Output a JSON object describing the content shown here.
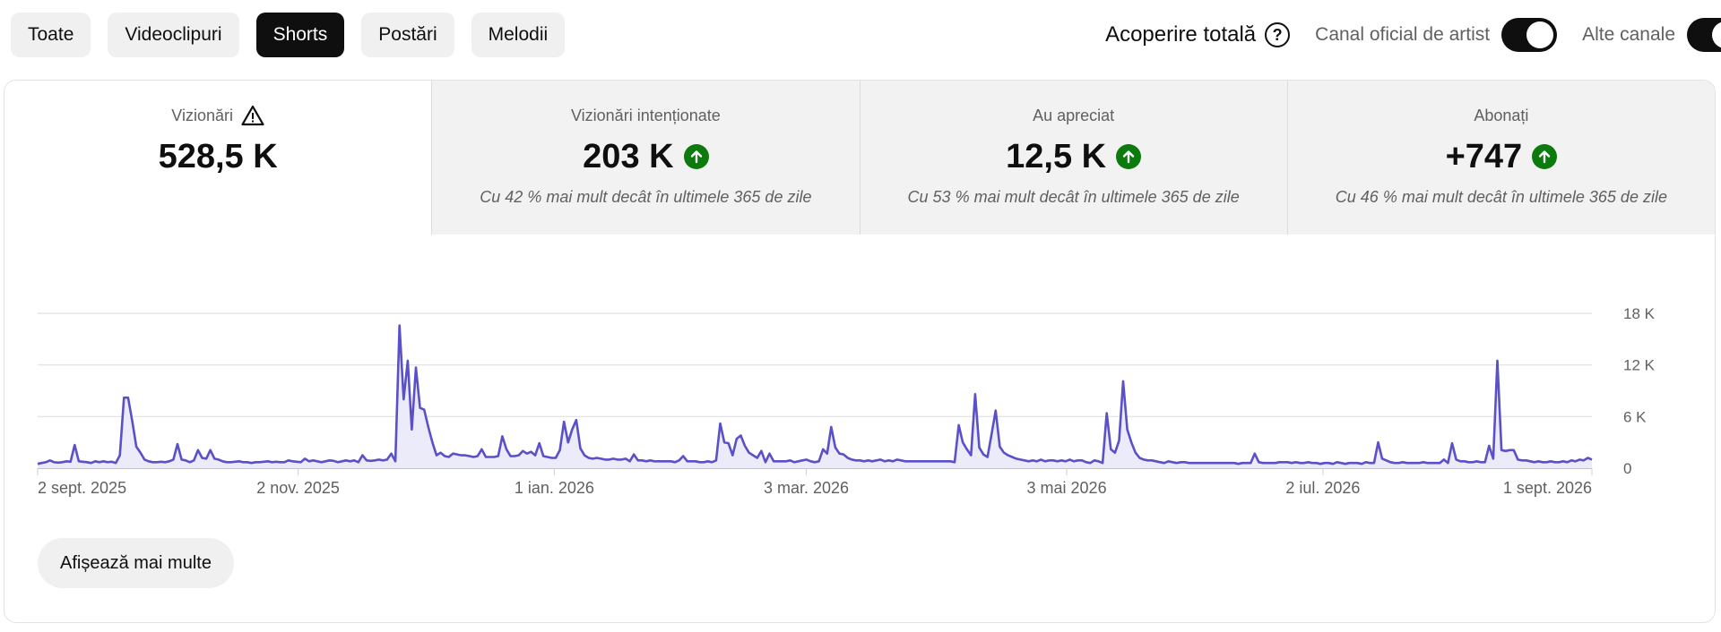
{
  "filters": {
    "chips": [
      {
        "label": "Toate",
        "active": false
      },
      {
        "label": "Videoclipuri",
        "active": false
      },
      {
        "label": "Shorts",
        "active": true
      },
      {
        "label": "Postări",
        "active": false
      },
      {
        "label": "Melodii",
        "active": false
      }
    ],
    "reach_label": "Acoperire totală",
    "official_artist_label": "Canal oficial de artist",
    "official_artist_on": true,
    "other_channels_label": "Alte canale",
    "other_channels_on": true
  },
  "metrics": [
    {
      "label": "Vizionări",
      "value": "528,5 K",
      "subtitle": "",
      "warning": true,
      "trend_up": false
    },
    {
      "label": "Vizionări intenționate",
      "value": "203 K",
      "subtitle": "Cu 42 % mai mult decât în ultimele 365 de zile",
      "warning": false,
      "trend_up": true
    },
    {
      "label": "Au apreciat",
      "value": "12,5 K",
      "subtitle": "Cu 53 % mai mult decât în ultimele 365 de zile",
      "warning": false,
      "trend_up": true
    },
    {
      "label": "Abonați",
      "value": "+747",
      "subtitle": "Cu 46 % mai mult decât în ultimele 365 de zile",
      "warning": false,
      "trend_up": true
    }
  ],
  "colors": {
    "series": "#5a50c8",
    "area": "#ecebfa",
    "up": "#0d7a0d"
  },
  "chart_data": {
    "type": "area",
    "ylim": [
      0,
      18000
    ],
    "yticks": [
      {
        "value": 0,
        "label": "0"
      },
      {
        "value": 6000,
        "label": "6 K"
      },
      {
        "value": 12000,
        "label": "12 K"
      },
      {
        "value": 18000,
        "label": "18 K"
      }
    ],
    "x_labels": [
      "2 sept. 2025",
      "2 nov. 2025",
      "1 ian. 2026",
      "3 mar. 2026",
      "3 mai 2026",
      "2 iul. 2026",
      "1 sept. 2026"
    ],
    "x_label_days": [
      0,
      61,
      121,
      180,
      241,
      301,
      364
    ],
    "series": [
      {
        "values": [
          500,
          600,
          700,
          900,
          700,
          650,
          700,
          800,
          750,
          2700,
          800,
          750,
          700,
          600,
          800,
          700,
          800,
          700,
          750,
          600,
          1500,
          8200,
          8200,
          5500,
          2500,
          1800,
          1000,
          800,
          700,
          700,
          750,
          700,
          800,
          1000,
          2800,
          1000,
          900,
          700,
          900,
          2100,
          1200,
          1100,
          2100,
          1100,
          1000,
          800,
          700,
          700,
          750,
          800,
          700,
          700,
          600,
          700,
          700,
          750,
          800,
          700,
          750,
          700,
          700,
          900,
          800,
          750,
          700,
          1100,
          800,
          900,
          800,
          700,
          800,
          900,
          850,
          700,
          800,
          900,
          800,
          900,
          700,
          1500,
          900,
          850,
          900,
          1000,
          900,
          1000,
          1700,
          800,
          16600,
          8000,
          12500,
          4500,
          11700,
          7000,
          6800,
          4800,
          3000,
          1500,
          1800,
          1400,
          1300,
          1700,
          1600,
          1500,
          1500,
          1400,
          1300,
          1400,
          2200,
          1300,
          1300,
          1300,
          1400,
          3700,
          2200,
          1400,
          1400,
          1500,
          2000,
          1700,
          1900,
          1500,
          2900,
          1400,
          1300,
          1200,
          1200,
          2100,
          5400,
          3000,
          4500,
          5600,
          2300,
          1500,
          1200,
          1100,
          1200,
          1100,
          1000,
          1000,
          1100,
          1000,
          1000,
          1100,
          800,
          1600,
          900,
          900,
          800,
          900,
          800,
          800,
          800,
          800,
          800,
          700,
          900,
          1400,
          800,
          800,
          800,
          700,
          700,
          800,
          700,
          900,
          5200,
          3000,
          2900,
          1500,
          3400,
          3800,
          2600,
          1800,
          1500,
          1200,
          2000,
          700,
          1700,
          800,
          800,
          800,
          800,
          900,
          700,
          800,
          900,
          1000,
          800,
          700,
          800,
          2200,
          1700,
          4800,
          2400,
          1700,
          1600,
          1200,
          1000,
          900,
          900,
          800,
          900,
          800,
          900,
          1000,
          800,
          900,
          800,
          1000,
          900,
          800,
          800,
          800,
          800,
          800,
          800,
          800,
          800,
          800,
          800,
          800,
          800,
          700,
          5000,
          3000,
          2200,
          1500,
          8600,
          2400,
          1600,
          1300,
          4000,
          6700,
          2500,
          1800,
          1500,
          1300,
          1100,
          1000,
          900,
          800,
          900,
          800,
          1000,
          800,
          900,
          900,
          800,
          900,
          800,
          1000,
          800,
          900,
          900,
          700,
          600,
          900,
          800,
          600,
          6400,
          2200,
          1800,
          3200,
          10100,
          4500,
          3000,
          1800,
          1200,
          1000,
          900,
          900,
          800,
          700,
          600,
          800,
          700,
          600,
          700,
          700,
          600,
          600,
          600,
          600,
          600,
          600,
          600,
          600,
          600,
          600,
          600,
          600,
          500,
          600,
          600,
          600,
          1700,
          700,
          600,
          600,
          600,
          600,
          700,
          700,
          700,
          600,
          700,
          600,
          600,
          700,
          600,
          600,
          500,
          600,
          600,
          500,
          700,
          600,
          500,
          600,
          600,
          600,
          500,
          700,
          600,
          600,
          3000,
          1100,
          900,
          700,
          600,
          600,
          700,
          600,
          600,
          600,
          600,
          700,
          600,
          600,
          600,
          600,
          1000,
          600,
          2900,
          1000,
          800,
          800,
          700,
          700,
          800,
          700,
          700,
          2600,
          1100,
          12500,
          2100,
          2000,
          2100,
          2100,
          1000,
          900,
          900,
          800,
          700,
          800,
          700,
          700,
          800,
          700,
          700,
          800,
          700,
          900,
          800,
          1000,
          900,
          1200,
          1000
        ]
      }
    ]
  },
  "show_more_label": "Afișează mai multe"
}
